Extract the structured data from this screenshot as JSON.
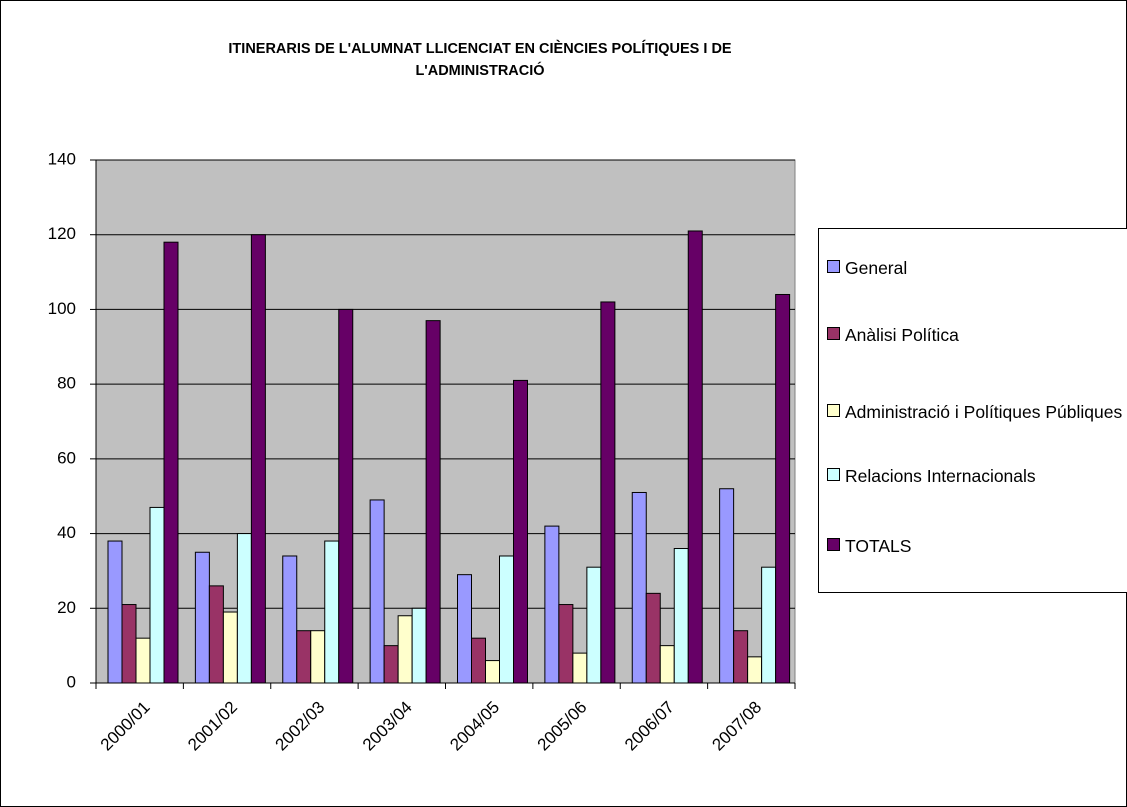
{
  "chart_data": {
    "type": "bar",
    "title": "ITINERARIS DE L'ALUMNAT LLICENCIAT EN CIÈNCIES POLÍTIQUES I DE L'ADMINISTRACIÓ",
    "categories": [
      "2000/01",
      "2001/02",
      "2002/03",
      "2003/04",
      "2004/05",
      "2005/06",
      "2006/07",
      "2007/08"
    ],
    "series": [
      {
        "name": "General",
        "color": "#9999ff",
        "values": [
          38,
          35,
          34,
          49,
          29,
          42,
          51,
          52
        ]
      },
      {
        "name": "Anàlisi Política",
        "color": "#993366",
        "values": [
          21,
          26,
          14,
          10,
          12,
          21,
          24,
          14
        ]
      },
      {
        "name": "Administració i Polítiques Públiques",
        "color": "#ffffcc",
        "values": [
          12,
          19,
          14,
          18,
          6,
          8,
          10,
          7
        ]
      },
      {
        "name": "Relacions Internacionals",
        "color": "#ccffff",
        "values": [
          47,
          40,
          38,
          20,
          34,
          31,
          36,
          31
        ]
      },
      {
        "name": "TOTALS",
        "color": "#660066",
        "values": [
          118,
          120,
          100,
          97,
          81,
          102,
          121,
          104
        ]
      }
    ],
    "ylim": [
      0,
      140
    ],
    "yticks": [
      0,
      20,
      40,
      60,
      80,
      100,
      120,
      140
    ],
    "grid": true,
    "plot_background": "#c0c0c0",
    "legend": "right"
  }
}
